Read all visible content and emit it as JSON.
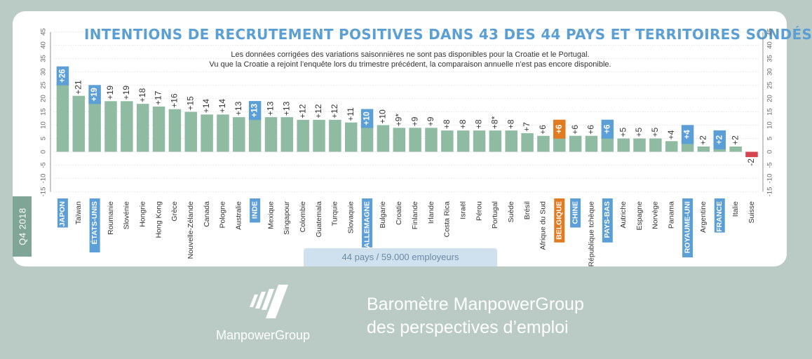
{
  "title": "INTENTIONS DE RECRUTEMENT POSITIVES DANS 43 DES 44 PAYS ET TERRITOIRES SONDÉS",
  "subtitle_line1": "Les données corrigées des variations saisonnières ne sont pas disponibles pour la Croatie et le Portugal.",
  "subtitle_line2": "Vu que la Croatie a rejoint l’enquête lors du trimestre précédent, la comparaison annuelle n’est pas encore disponible.",
  "quarter_tab": "Q4 2018",
  "footer_pill": "44 pays / 59.000 employeurs",
  "brand": "ManpowerGroup",
  "barometer_line1": "Baromètre ManpowerGroup",
  "barometer_line2": "des perspectives d’emploi",
  "colors": {
    "bar": "#8fbba3",
    "highlight_label_bg": "#5b9fd6",
    "belgium_label_bg": "#e07b22",
    "negative_bar": "#d6454f",
    "title": "#5a9fd4"
  },
  "chart_data": {
    "type": "bar",
    "ylim": [
      -15,
      45
    ],
    "yticks": [
      -15,
      -10,
      -5,
      0,
      5,
      10,
      15,
      20,
      25,
      30,
      35,
      40,
      45
    ],
    "categories": [
      "JAPON",
      "Taïwan",
      "ÉTATS-UNIS",
      "Roumanie",
      "Slovénie",
      "Hongrie",
      "Hong Kong",
      "Grèce",
      "Nouvelle-Zélande",
      "Canada",
      "Pologne",
      "Australie",
      "INDE",
      "Mexique",
      "Singapour",
      "Colombie",
      "Guatemala",
      "Turquie",
      "Slovaquie",
      "ALLEMAGNE",
      "Bulgarie",
      "Croatie",
      "Finlande",
      "Irlande",
      "Costa Rica",
      "Israël",
      "Pérou",
      "Portugal",
      "Suède",
      "Brésil",
      "Afrique du Sud",
      "BELGIQUE",
      "CHINE",
      "République tchèque",
      "PAYS-BAS",
      "Autriche",
      "Espagne",
      "Norvège",
      "Panama",
      "ROYAUME-UNI",
      "Argentine",
      "FRANCE",
      "Italie",
      "Suisse"
    ],
    "values": [
      26,
      21,
      19,
      19,
      19,
      18,
      17,
      16,
      15,
      14,
      14,
      13,
      13,
      13,
      13,
      12,
      12,
      12,
      11,
      10,
      10,
      9,
      9,
      9,
      8,
      8,
      8,
      8,
      8,
      7,
      6,
      6,
      6,
      6,
      6,
      5,
      5,
      5,
      4,
      4,
      2,
      2,
      2,
      -2
    ],
    "value_labels": [
      "+26",
      "+21",
      "+19",
      "+19",
      "+19",
      "+18",
      "+17",
      "+16",
      "+15",
      "+14",
      "+14",
      "+13",
      "+13",
      "+13",
      "+13",
      "+12",
      "+12",
      "+12",
      "+11",
      "+10",
      "+10",
      "+9*",
      "+9",
      "+9",
      "+8",
      "+8",
      "+8",
      "+8*",
      "+8",
      "+7",
      "+6",
      "+6",
      "+6",
      "+6",
      "+6",
      "+5",
      "+5",
      "+5",
      "+4",
      "+4",
      "+2",
      "+2",
      "+2",
      "-2"
    ],
    "highlight_blue": [
      "JAPON",
      "ÉTATS-UNIS",
      "INDE",
      "ALLEMAGNE",
      "CHINE",
      "PAYS-BAS",
      "ROYAUME-UNI",
      "FRANCE"
    ],
    "highlight_orange": [
      "BELGIQUE"
    ],
    "value_highlight_blue": [
      "JAPON",
      "ÉTATS-UNIS",
      "INDE",
      "ALLEMAGNE",
      "PAYS-BAS",
      "ROYAUME-UNI",
      "FRANCE"
    ],
    "value_highlight_orange": [
      "BELGIQUE"
    ]
  }
}
